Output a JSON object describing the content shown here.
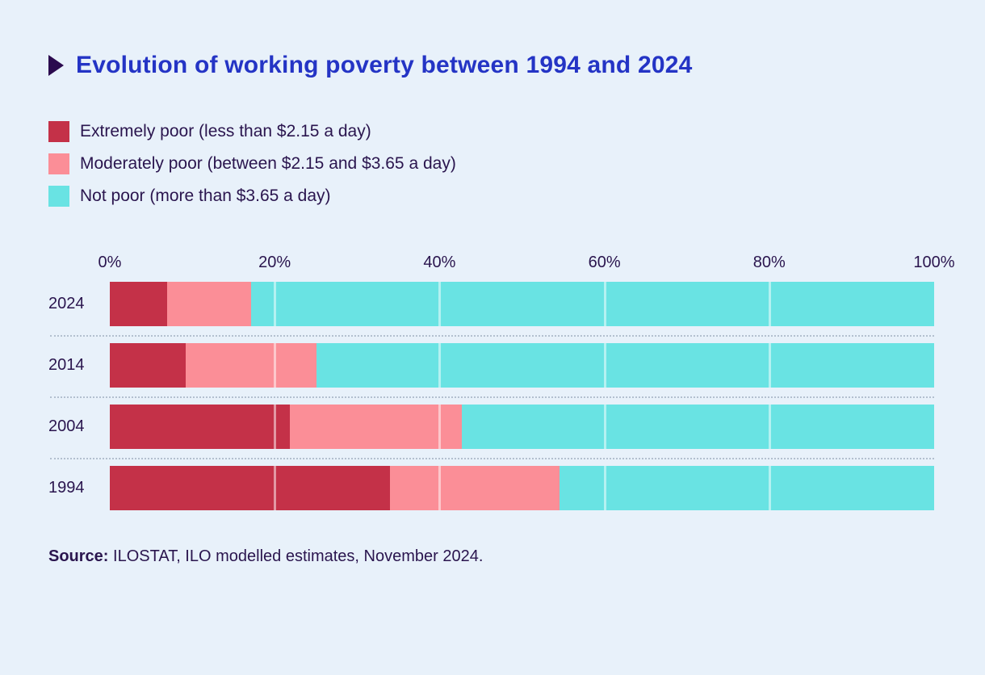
{
  "title": "Evolution of working poverty between 1994 and 2024",
  "legend": [
    {
      "label": "Extremely poor (less than $2.15 a day)",
      "color": "#c43148"
    },
    {
      "label": "Moderately poor (between $2.15 and $3.65 a day)",
      "color": "#fb8e97"
    },
    {
      "label": "Not poor (more than $3.65 a day)",
      "color": "#69e3e3"
    }
  ],
  "source": {
    "label": "Source:",
    "text": " ILOSTAT, ILO modelled estimates, November 2024."
  },
  "colors": {
    "background": "#e8f1fa",
    "title": "#2434c5",
    "text": "#2a154e",
    "marker": "#2b0a4e",
    "gridline": "rgba(255,255,255,0.5)"
  },
  "chart_data": {
    "type": "bar",
    "stacked": true,
    "orientation": "horizontal",
    "title": "Evolution of working poverty between 1994 and 2024",
    "categories": [
      "2024",
      "2014",
      "2004",
      "1994"
    ],
    "series": [
      {
        "name": "Extremely poor (less than $2.15 a day)",
        "color": "#c43148",
        "values": [
          7.0,
          9.2,
          21.8,
          34.0
        ]
      },
      {
        "name": "Moderately poor (between $2.15 and $3.65 a day)",
        "color": "#fb8e97",
        "values": [
          10.1,
          15.9,
          20.9,
          20.6
        ]
      },
      {
        "name": "Not poor (more than $3.65 a day)",
        "color": "#69e3e3",
        "values": [
          82.9,
          74.9,
          57.3,
          45.4
        ]
      }
    ],
    "x_ticks": [
      "0%",
      "20%",
      "40%",
      "60%",
      "80%",
      "100%"
    ],
    "xlim": [
      0,
      100
    ],
    "gridlines_at": [
      20,
      40,
      60,
      80
    ],
    "grid": "vertical translucent white lines over bars",
    "legend_position": "top-left",
    "row_separators": "dotted"
  }
}
